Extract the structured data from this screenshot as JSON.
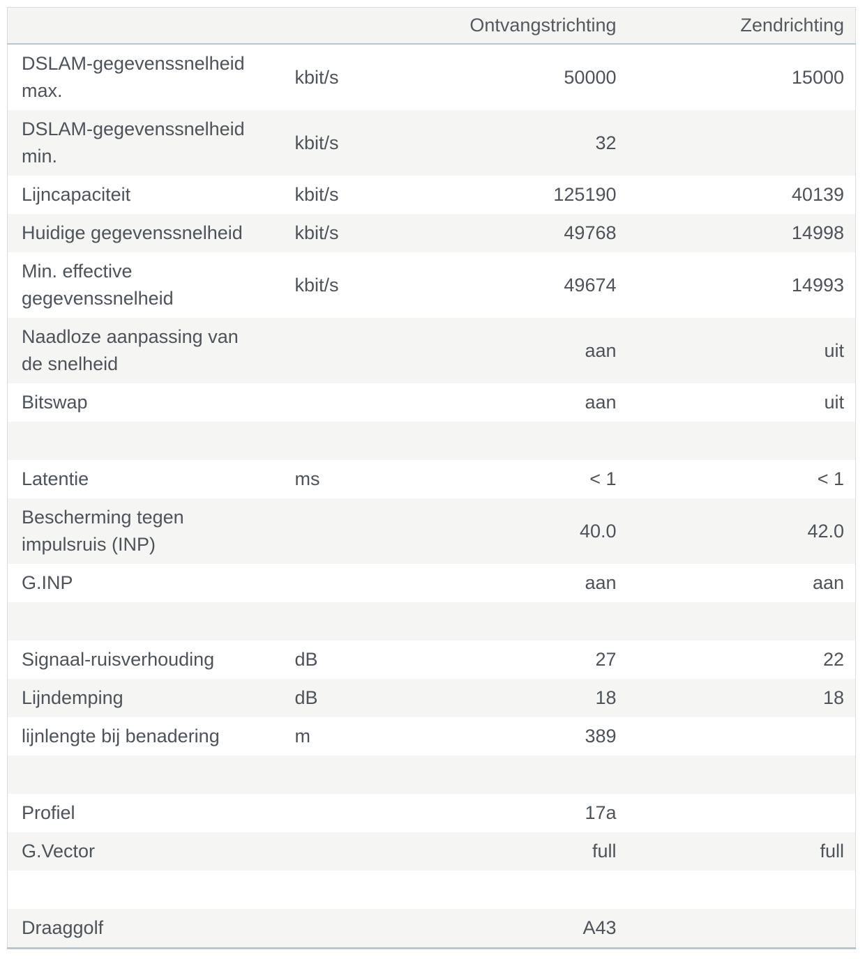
{
  "table": {
    "headers": {
      "label": "",
      "unit": "",
      "rx": "Ontvangstrichting",
      "tx": "Zendrichting"
    },
    "rows": [
      {
        "label": "DSLAM-gegevenssnelheid\nmax.",
        "unit": "kbit/s",
        "rx": "50000",
        "tx": "15000"
      },
      {
        "label": "DSLAM-gegevenssnelheid\nmin.",
        "unit": "kbit/s",
        "rx": "32",
        "tx": ""
      },
      {
        "label": "Lijncapaciteit",
        "unit": "kbit/s",
        "rx": "125190",
        "tx": "40139"
      },
      {
        "label": "Huidige gegevenssnelheid",
        "unit": "kbit/s",
        "rx": "49768",
        "tx": "14998"
      },
      {
        "label": "Min. effective\ngegevenssnelheid",
        "unit": "kbit/s",
        "rx": "49674",
        "tx": "14993"
      },
      {
        "label": "Naadloze aanpassing van\nde snelheid",
        "unit": "",
        "rx": "aan",
        "tx": "uit"
      },
      {
        "label": "Bitswap",
        "unit": "",
        "rx": "aan",
        "tx": "uit"
      },
      {
        "spacer": true,
        "label": "",
        "unit": "",
        "rx": "",
        "tx": ""
      },
      {
        "label": "Latentie",
        "unit": "ms",
        "rx": "< 1",
        "tx": "< 1"
      },
      {
        "label": "Bescherming tegen\nimpulsruis (INP)",
        "unit": "",
        "rx": "40.0",
        "tx": "42.0"
      },
      {
        "label": "G.INP",
        "unit": "",
        "rx": "aan",
        "tx": "aan"
      },
      {
        "spacer": true,
        "label": "",
        "unit": "",
        "rx": "",
        "tx": ""
      },
      {
        "label": "Signaal-ruisverhouding",
        "unit": "dB",
        "rx": "27",
        "tx": "22"
      },
      {
        "label": "Lijndemping",
        "unit": "dB",
        "rx": "18",
        "tx": "18"
      },
      {
        "label": "lijnlengte bij benadering",
        "unit": "m",
        "rx": "389",
        "tx": ""
      },
      {
        "spacer": true,
        "label": "",
        "unit": "",
        "rx": "",
        "tx": ""
      },
      {
        "label": "Profiel",
        "unit": "",
        "rx": "17a",
        "tx": ""
      },
      {
        "label": "G.Vector",
        "unit": "",
        "rx": "full",
        "tx": "full"
      },
      {
        "spacer": true,
        "label": "",
        "unit": "",
        "rx": "",
        "tx": ""
      },
      {
        "label": "Draaggolf",
        "unit": "",
        "rx": "A43",
        "tx": ""
      }
    ],
    "colors": {
      "row_alt_background": "#f5f5f4",
      "header_background": "#f4f4f2",
      "outer_border": "#d8dcde",
      "strong_border": "#bac8ce",
      "text": "#4d5359"
    }
  }
}
